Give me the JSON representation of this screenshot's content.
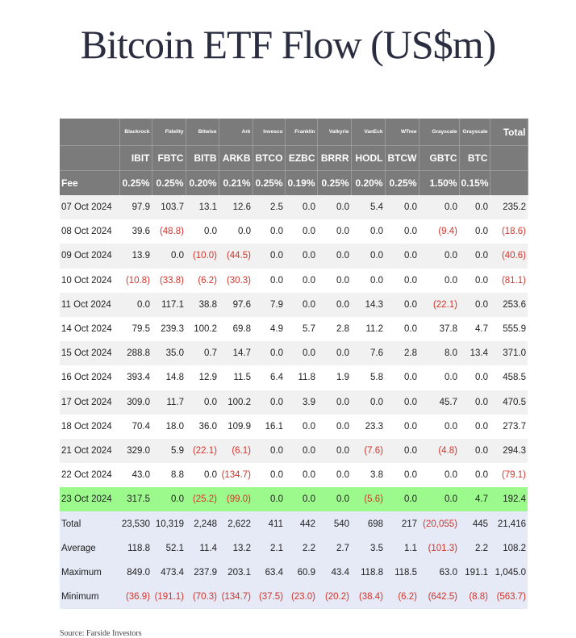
{
  "title": "Bitcoin ETF Flow (US$m)",
  "issuers": [
    "Blackrock",
    "Fidelity",
    "Bitwise",
    "Ark",
    "Invesco",
    "Franklin",
    "Valkyrie",
    "VanEck",
    "WTree",
    "Grayscale",
    "Grayscale"
  ],
  "total_label": "Total",
  "tickers": [
    "IBIT",
    "FBTC",
    "BITB",
    "ARKB",
    "BTCO",
    "EZBC",
    "BRRR",
    "HODL",
    "BTCW",
    "GBTC",
    "BTC"
  ],
  "fee_label": "Fee",
  "fees": [
    "0.25%",
    "0.25%",
    "0.20%",
    "0.21%",
    "0.25%",
    "0.19%",
    "0.25%",
    "0.20%",
    "0.25%",
    "1.50%",
    "0.15%"
  ],
  "rows": [
    {
      "date": "07 Oct 2024",
      "values": [
        "97.9",
        "103.7",
        "13.1",
        "12.6",
        "2.5",
        "0.0",
        "0.0",
        "5.4",
        "0.0",
        "0.0",
        "0.0",
        "235.2"
      ]
    },
    {
      "date": "08 Oct 2024",
      "values": [
        "39.6",
        "(48.8)",
        "0.0",
        "0.0",
        "0.0",
        "0.0",
        "0.0",
        "0.0",
        "0.0",
        "(9.4)",
        "0.0",
        "(18.6)"
      ]
    },
    {
      "date": "09 Oct 2024",
      "values": [
        "13.9",
        "0.0",
        "(10.0)",
        "(44.5)",
        "0.0",
        "0.0",
        "0.0",
        "0.0",
        "0.0",
        "0.0",
        "0.0",
        "(40.6)"
      ]
    },
    {
      "date": "10 Oct 2024",
      "values": [
        "(10.8)",
        "(33.8)",
        "(6.2)",
        "(30.3)",
        "0.0",
        "0.0",
        "0.0",
        "0.0",
        "0.0",
        "0.0",
        "0.0",
        "(81.1)"
      ]
    },
    {
      "date": "11 Oct 2024",
      "values": [
        "0.0",
        "117.1",
        "38.8",
        "97.6",
        "7.9",
        "0.0",
        "0.0",
        "14.3",
        "0.0",
        "(22.1)",
        "0.0",
        "253.6"
      ]
    },
    {
      "date": "14 Oct 2024",
      "values": [
        "79.5",
        "239.3",
        "100.2",
        "69.8",
        "4.9",
        "5.7",
        "2.8",
        "11.2",
        "0.0",
        "37.8",
        "4.7",
        "555.9"
      ]
    },
    {
      "date": "15 Oct 2024",
      "values": [
        "288.8",
        "35.0",
        "0.7",
        "14.7",
        "0.0",
        "0.0",
        "0.0",
        "7.6",
        "2.8",
        "8.0",
        "13.4",
        "371.0"
      ]
    },
    {
      "date": "16 Oct 2024",
      "values": [
        "393.4",
        "14.8",
        "12.9",
        "11.5",
        "6.4",
        "11.8",
        "1.9",
        "5.8",
        "0.0",
        "0.0",
        "0.0",
        "458.5"
      ]
    },
    {
      "date": "17 Oct 2024",
      "values": [
        "309.0",
        "11.7",
        "0.0",
        "100.2",
        "0.0",
        "3.9",
        "0.0",
        "0.0",
        "0.0",
        "45.7",
        "0.0",
        "470.5"
      ]
    },
    {
      "date": "18 Oct 2024",
      "values": [
        "70.4",
        "18.0",
        "36.0",
        "109.9",
        "16.1",
        "0.0",
        "0.0",
        "23.3",
        "0.0",
        "0.0",
        "0.0",
        "273.7"
      ]
    },
    {
      "date": "21 Oct 2024",
      "values": [
        "329.0",
        "5.9",
        "(22.1)",
        "(6.1)",
        "0.0",
        "0.0",
        "0.0",
        "(7.6)",
        "0.0",
        "(4.8)",
        "0.0",
        "294.3"
      ]
    },
    {
      "date": "22 Oct 2024",
      "values": [
        "43.0",
        "8.8",
        "0.0",
        "(134.7)",
        "0.0",
        "0.0",
        "0.0",
        "3.8",
        "0.0",
        "0.0",
        "0.0",
        "(79.1)"
      ]
    },
    {
      "date": "23 Oct 2024",
      "values": [
        "317.5",
        "0.0",
        "(25.2)",
        "(99.0)",
        "0.0",
        "0.0",
        "0.0",
        "(5.6)",
        "0.0",
        "0.0",
        "4.7",
        "192.4"
      ]
    }
  ],
  "summary": [
    {
      "label": "Total",
      "values": [
        "23,530",
        "10,319",
        "2,248",
        "2,622",
        "411",
        "442",
        "540",
        "698",
        "217",
        "(20,055)",
        "445",
        "21,416"
      ]
    },
    {
      "label": "Average",
      "values": [
        "118.8",
        "52.1",
        "11.4",
        "13.2",
        "2.1",
        "2.2",
        "2.7",
        "3.5",
        "1.1",
        "(101.3)",
        "2.2",
        "108.2"
      ]
    },
    {
      "label": "Maximum",
      "values": [
        "849.0",
        "473.4",
        "237.9",
        "203.1",
        "63.4",
        "60.9",
        "43.4",
        "118.8",
        "118.5",
        "63.0",
        "191.1",
        "1,045.0"
      ]
    },
    {
      "label": "Minimum",
      "values": [
        "(36.9)",
        "(191.1)",
        "(70.3)",
        "(134.7)",
        "(37.5)",
        "(23.0)",
        "(20.2)",
        "(38.4)",
        "(6.2)",
        "(642.5)",
        "(8.8)",
        "(563.7)"
      ]
    }
  ],
  "highlight_date": "23 Oct 2024",
  "colors": {
    "header_bg": "#7b7b7b",
    "highlight_row": "#9cf98c",
    "summary_bg": "#e6e9f6",
    "negative_text": "#d2352b"
  },
  "footnote": "Source: Farside Investors"
}
